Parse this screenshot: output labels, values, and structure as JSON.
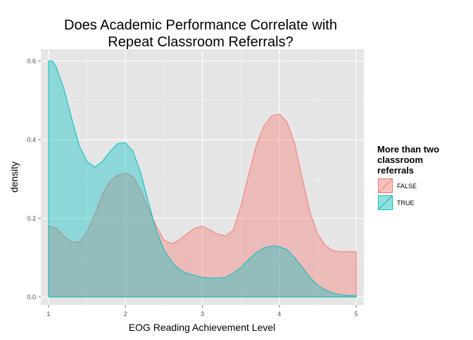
{
  "chart_data": {
    "type": "area",
    "title_lines": [
      "Does Academic Performance Correlate with",
      "Repeat Classroom Referrals?"
    ],
    "xlabel": "EOG Reading Achievement Level",
    "ylabel": "density",
    "xlim": [
      0.9,
      5.1
    ],
    "ylim": [
      -0.02,
      0.63
    ],
    "x_ticks": [
      1,
      2,
      3,
      4,
      5
    ],
    "y_ticks": [
      0.0,
      0.2,
      0.4,
      0.6
    ],
    "x_tick_labels": [
      "1",
      "2",
      "3",
      "4",
      "5"
    ],
    "y_tick_labels": [
      "0.0",
      "0.2",
      "0.4",
      "0.6"
    ],
    "grid": true,
    "legend": {
      "title_lines": [
        "More than two",
        "classroom",
        "referrals"
      ],
      "position": "right"
    },
    "series": [
      {
        "name": "FALSE",
        "fill": "#f8766d",
        "stroke": "#f8766d",
        "points": [
          [
            1.0,
            0.18
          ],
          [
            1.1,
            0.175
          ],
          [
            1.2,
            0.155
          ],
          [
            1.3,
            0.14
          ],
          [
            1.4,
            0.14
          ],
          [
            1.5,
            0.165
          ],
          [
            1.6,
            0.21
          ],
          [
            1.7,
            0.26
          ],
          [
            1.8,
            0.295
          ],
          [
            1.9,
            0.31
          ],
          [
            2.0,
            0.315
          ],
          [
            2.1,
            0.305
          ],
          [
            2.2,
            0.27
          ],
          [
            2.3,
            0.225
          ],
          [
            2.4,
            0.18
          ],
          [
            2.5,
            0.145
          ],
          [
            2.6,
            0.135
          ],
          [
            2.7,
            0.145
          ],
          [
            2.8,
            0.16
          ],
          [
            2.9,
            0.175
          ],
          [
            3.0,
            0.18
          ],
          [
            3.1,
            0.17
          ],
          [
            3.2,
            0.16
          ],
          [
            3.3,
            0.155
          ],
          [
            3.4,
            0.17
          ],
          [
            3.5,
            0.23
          ],
          [
            3.6,
            0.31
          ],
          [
            3.7,
            0.385
          ],
          [
            3.8,
            0.435
          ],
          [
            3.9,
            0.46
          ],
          [
            4.0,
            0.465
          ],
          [
            4.1,
            0.445
          ],
          [
            4.2,
            0.39
          ],
          [
            4.3,
            0.3
          ],
          [
            4.4,
            0.215
          ],
          [
            4.5,
            0.16
          ],
          [
            4.6,
            0.13
          ],
          [
            4.7,
            0.118
          ],
          [
            4.8,
            0.115
          ],
          [
            4.9,
            0.115
          ],
          [
            5.0,
            0.115
          ]
        ]
      },
      {
        "name": "TRUE",
        "fill": "#00bfc4",
        "stroke": "#00bfc4",
        "points": [
          [
            1.0,
            0.6
          ],
          [
            1.05,
            0.6
          ],
          [
            1.1,
            0.585
          ],
          [
            1.2,
            0.53
          ],
          [
            1.3,
            0.455
          ],
          [
            1.4,
            0.385
          ],
          [
            1.5,
            0.345
          ],
          [
            1.6,
            0.33
          ],
          [
            1.7,
            0.345
          ],
          [
            1.8,
            0.37
          ],
          [
            1.9,
            0.39
          ],
          [
            2.0,
            0.392
          ],
          [
            2.1,
            0.37
          ],
          [
            2.2,
            0.315
          ],
          [
            2.3,
            0.24
          ],
          [
            2.4,
            0.17
          ],
          [
            2.5,
            0.12
          ],
          [
            2.6,
            0.09
          ],
          [
            2.7,
            0.07
          ],
          [
            2.8,
            0.06
          ],
          [
            2.9,
            0.055
          ],
          [
            3.0,
            0.05
          ],
          [
            3.1,
            0.048
          ],
          [
            3.2,
            0.048
          ],
          [
            3.3,
            0.05
          ],
          [
            3.4,
            0.06
          ],
          [
            3.5,
            0.075
          ],
          [
            3.6,
            0.095
          ],
          [
            3.7,
            0.113
          ],
          [
            3.8,
            0.125
          ],
          [
            3.9,
            0.13
          ],
          [
            4.0,
            0.128
          ],
          [
            4.1,
            0.12
          ],
          [
            4.2,
            0.1
          ],
          [
            4.3,
            0.075
          ],
          [
            4.4,
            0.05
          ],
          [
            4.5,
            0.03
          ],
          [
            4.6,
            0.018
          ],
          [
            4.7,
            0.01
          ],
          [
            4.8,
            0.006
          ],
          [
            4.9,
            0.004
          ],
          [
            5.0,
            0.003
          ]
        ]
      }
    ]
  },
  "colors": {
    "panel_bg": "#e5e5e5",
    "grid_major": "#ffffff",
    "grid_minor": "#f2f2f2"
  }
}
